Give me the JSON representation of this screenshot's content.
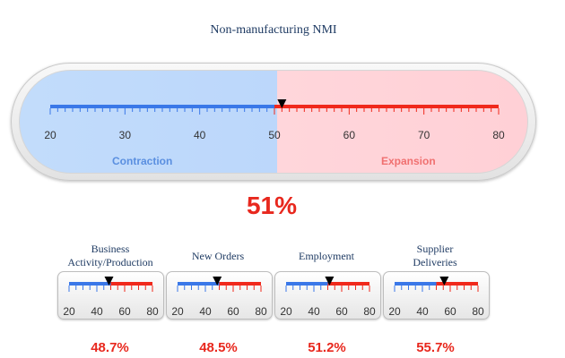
{
  "main": {
    "title": "Non-manufacturing NMI",
    "value_label": "51%",
    "value": 51,
    "scale_min": 20,
    "scale_max": 80,
    "ticks": [
      "20",
      "30",
      "40",
      "50",
      "60",
      "70",
      "80"
    ],
    "threshold": 50,
    "left_zone_label": "Contraction",
    "right_zone_label": "Expansion",
    "colors": {
      "contraction": "#3a78e8",
      "expansion": "#f0291c",
      "contraction_text": "#5a8fe0",
      "expansion_text": "#f07070"
    }
  },
  "components": [
    {
      "title_lines": [
        "Business",
        "Activity/Production"
      ],
      "value_label": "48.7%",
      "value": 48.7,
      "ticks": [
        "20",
        "40",
        "60",
        "80"
      ]
    },
    {
      "title_lines": [
        "New Orders"
      ],
      "value_label": "48.5%",
      "value": 48.5,
      "ticks": [
        "20",
        "40",
        "60",
        "80"
      ]
    },
    {
      "title_lines": [
        "Employment"
      ],
      "value_label": "51.2%",
      "value": 51.2,
      "ticks": [
        "20",
        "40",
        "60",
        "80"
      ]
    },
    {
      "title_lines": [
        "Supplier",
        "Deliveries"
      ],
      "value_label": "55.7%",
      "value": 55.7,
      "ticks": [
        "20",
        "40",
        "60",
        "80"
      ]
    }
  ]
}
